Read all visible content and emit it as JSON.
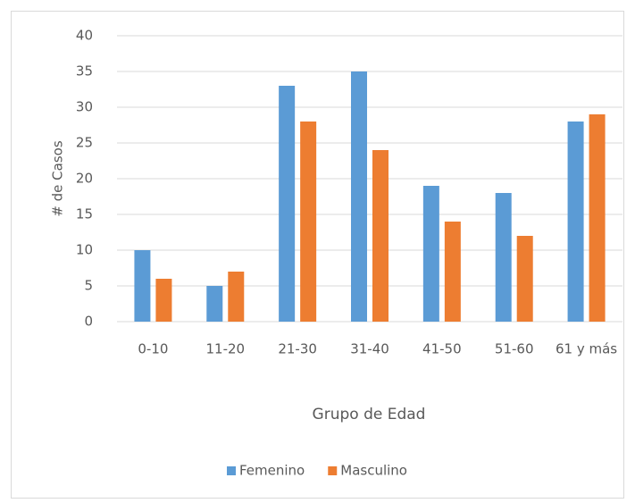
{
  "chart_data": {
    "type": "bar",
    "categories": [
      "0-10",
      "11-20",
      "21-30",
      "31-40",
      "41-50",
      "51-60",
      "61 y más"
    ],
    "series": [
      {
        "name": "Femenino",
        "color": "#5b9bd5",
        "values": [
          10,
          5,
          33,
          35,
          19,
          18,
          28
        ]
      },
      {
        "name": "Masculino",
        "color": "#ed7d31",
        "values": [
          6,
          7,
          28,
          24,
          14,
          12,
          29
        ]
      }
    ],
    "ylim": [
      0,
      40
    ],
    "yticks": [
      0,
      5,
      10,
      15,
      20,
      25,
      30,
      35,
      40
    ],
    "y_label": "# de Casos",
    "x_label": "Grupo de Edad",
    "grid": true,
    "legend": "bottom"
  }
}
